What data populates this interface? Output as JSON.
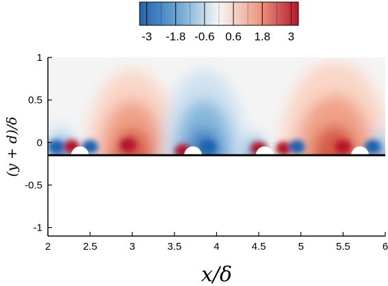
{
  "chart_data": {
    "type": "heatmap",
    "title": "",
    "xlabel": "x/δ",
    "ylabel": "(y + d)/δ",
    "xlim": [
      2,
      6
    ],
    "ylim": [
      -1.1,
      1
    ],
    "xticks": [
      "2",
      "2.5",
      "3",
      "3.5",
      "4",
      "4.5",
      "5",
      "5.5",
      "6"
    ],
    "yticks": [
      "-1",
      "-0.5",
      "0",
      "0.5",
      "1"
    ],
    "wall_y": -0.15,
    "colorbar": {
      "range": [
        -3.3,
        3.3
      ],
      "ticks": [
        "-3",
        "-1.8",
        "-0.6",
        "0.6",
        "1.8",
        "3"
      ],
      "colors": {
        "negative": "#1f63b0",
        "mid": "#f6f6f6",
        "positive": "#b2182b"
      },
      "placement": "top-center"
    },
    "grid": false,
    "structures": [
      {
        "kind": "positive-lobe",
        "x": 3.0,
        "x_half_width": 0.55,
        "y_top": 0.85
      },
      {
        "kind": "negative-lobe",
        "x": 3.85,
        "x_half_width": 0.5,
        "y_top": 0.85
      },
      {
        "kind": "positive-lobe",
        "x": 5.4,
        "x_half_width": 0.65,
        "y_top": 0.95
      },
      {
        "kind": "negative-lobe",
        "x": 2.15,
        "x_half_width": 0.2,
        "y_top": 0.2
      },
      {
        "kind": "negative-lobe",
        "x": 4.45,
        "x_half_width": 0.15,
        "y_top": 0.15
      },
      {
        "kind": "negative-lobe",
        "x": 5.95,
        "x_half_width": 0.12,
        "y_top": 0.2
      }
    ],
    "hot_spots": [
      {
        "sign": "positive",
        "x": 2.28,
        "y": -0.05
      },
      {
        "sign": "positive",
        "x": 2.95,
        "y": -0.03
      },
      {
        "sign": "positive",
        "x": 3.6,
        "y": -0.1
      },
      {
        "sign": "positive",
        "x": 4.5,
        "y": -0.07
      },
      {
        "sign": "positive",
        "x": 4.8,
        "y": -0.07
      },
      {
        "sign": "positive",
        "x": 5.5,
        "y": -0.05
      },
      {
        "sign": "negative",
        "x": 2.1,
        "y": -0.05
      },
      {
        "sign": "negative",
        "x": 2.5,
        "y": -0.05
      },
      {
        "sign": "negative",
        "x": 3.9,
        "y": -0.05
      },
      {
        "sign": "negative",
        "x": 4.95,
        "y": -0.05
      },
      {
        "sign": "negative",
        "x": 5.85,
        "y": -0.05
      }
    ],
    "bumps": [
      {
        "x": 2.38
      },
      {
        "x": 3.72
      },
      {
        "x": 4.57
      },
      {
        "x": 5.7
      }
    ]
  }
}
